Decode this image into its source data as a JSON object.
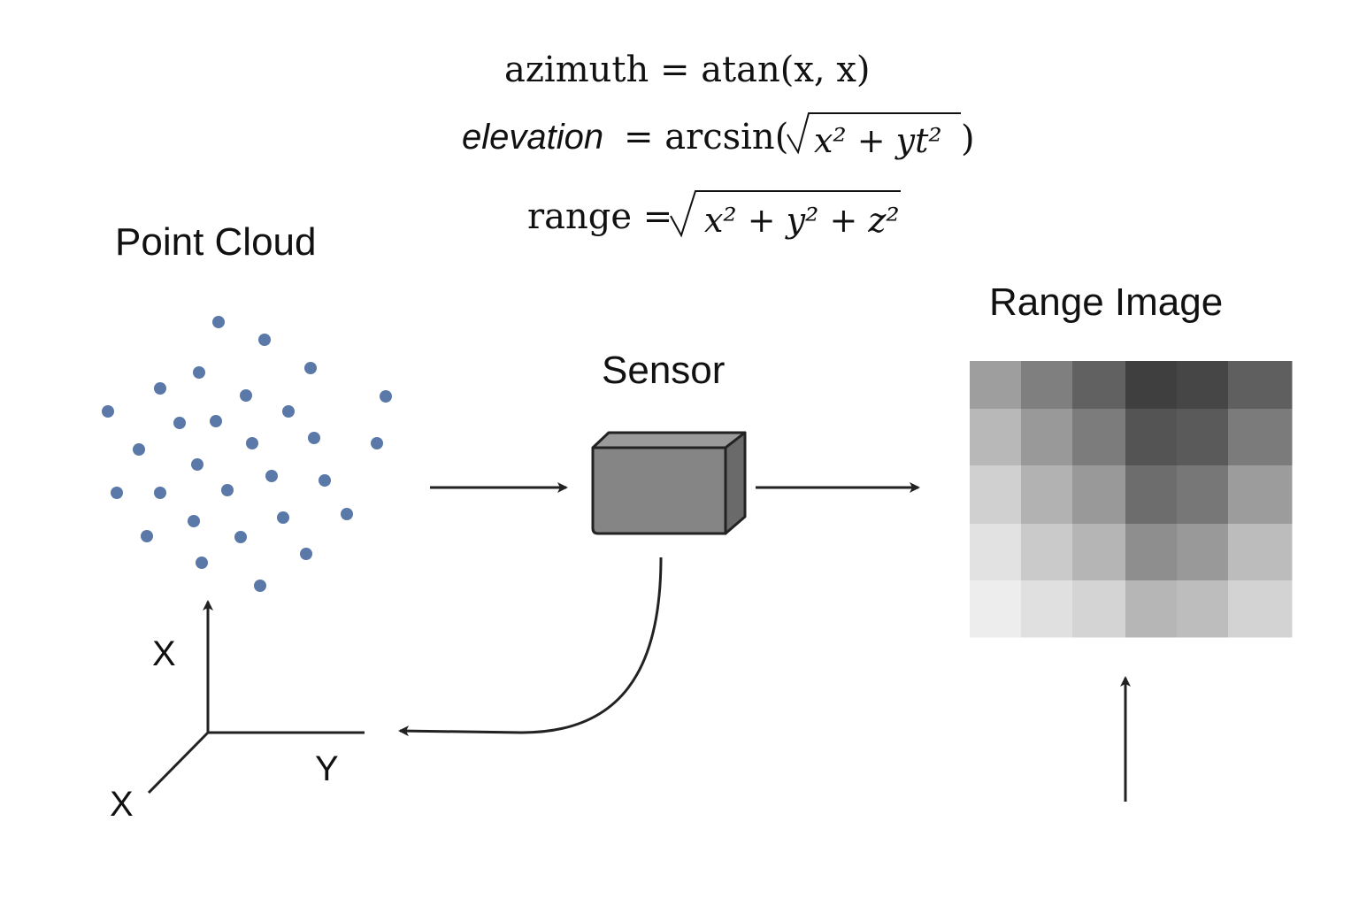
{
  "formulas": {
    "azimuth": {
      "name": "azimuth",
      "rhs": "atan(x, x)"
    },
    "elevation": {
      "name": "elevation",
      "rhs_prefix": "arcsin(",
      "radicand": "x² + yt²",
      "rhs_suffix": ")"
    },
    "range": {
      "name": "range",
      "radicand": "x² + y² + z²"
    }
  },
  "labels": {
    "point_cloud": "Point Cloud",
    "sensor": "Sensor",
    "range_image": "Range Image"
  },
  "axes": {
    "vertical": "X",
    "horizontal": "Y",
    "diagonal": "X"
  },
  "colors": {
    "point": "#5a78a8",
    "sensor_front": "#858585",
    "sensor_side": "#6a6a6a",
    "sensor_top": "#9a9a9a",
    "stroke": "#222222"
  },
  "range_image": {
    "rows": 5,
    "cols": 6,
    "grays": [
      [
        "#9e9e9e",
        "#7f7f7f",
        "#616161",
        "#3f3f3f",
        "#464646",
        "#5f5f5f"
      ],
      [
        "#b8b8b8",
        "#999999",
        "#7c7c7c",
        "#545454",
        "#5a5a5a",
        "#7b7b7b"
      ],
      [
        "#d0d0d0",
        "#b2b2b2",
        "#999999",
        "#6d6d6d",
        "#777777",
        "#9c9c9c"
      ],
      [
        "#e2e2e2",
        "#cacaca",
        "#b5b5b5",
        "#8e8e8e",
        "#999999",
        "#bcbcbc"
      ],
      [
        "#ededed",
        "#e0e0e0",
        "#d4d4d4",
        "#b6b6b6",
        "#bdbdbd",
        "#d3d3d3"
      ]
    ]
  }
}
